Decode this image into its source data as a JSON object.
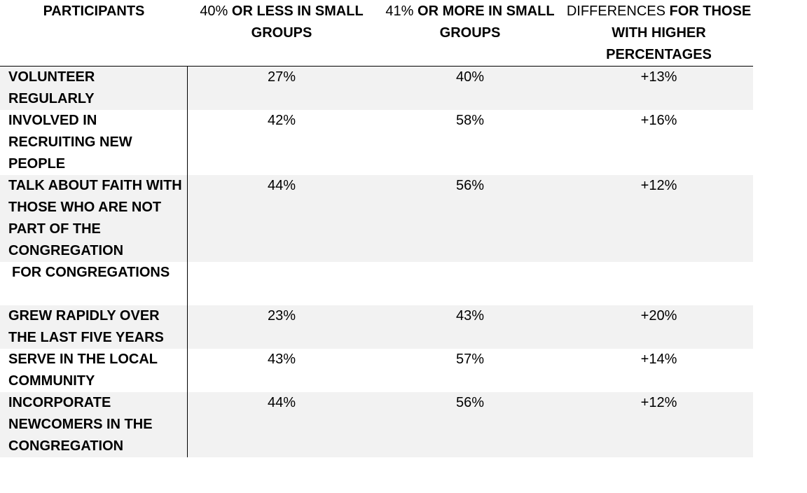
{
  "header": {
    "participants": "PARTICIPANTS",
    "col1_light": "40%",
    "col1_bold": " OR LESS IN SMALL GROUPS",
    "col2_light": "41%",
    "col2_bold": " OR MORE IN SMALL GROUPS",
    "col3_light": "DIFFERENCES",
    "col3_bold": " FOR THOSE WITH HIGHER PERCENTAGES"
  },
  "rows": [
    {
      "label": "VOLUNTEER REGULARLY",
      "low": "27%",
      "high": "40%",
      "diff": "+13%"
    },
    {
      "label": "INVOLVED IN RECRUITING NEW PEOPLE",
      "low": "42%",
      "high": "58%",
      "diff": "+16%"
    },
    {
      "label": "TALK ABOUT FAITH WITH THOSE WHO ARE NOT PART OF THE CONGREGATION",
      "low": "44%",
      "high": "56%",
      "diff": "+12%"
    },
    {
      "label": "FOR CONGREGATIONS",
      "low": "",
      "high": "",
      "diff": ""
    },
    {
      "label": "GREW RAPIDLY OVER THE LAST FIVE YEARS",
      "low": "23%",
      "high": "43%",
      "diff": "+20%"
    },
    {
      "label": "SERVE IN THE LOCAL COMMUNITY",
      "low": "43%",
      "high": "57%",
      "diff": "+14%"
    },
    {
      "label": "INCORPORATE NEWCOMERS IN THE CONGREGATION",
      "low": "44%",
      "high": "56%",
      "diff": "+12%"
    }
  ]
}
